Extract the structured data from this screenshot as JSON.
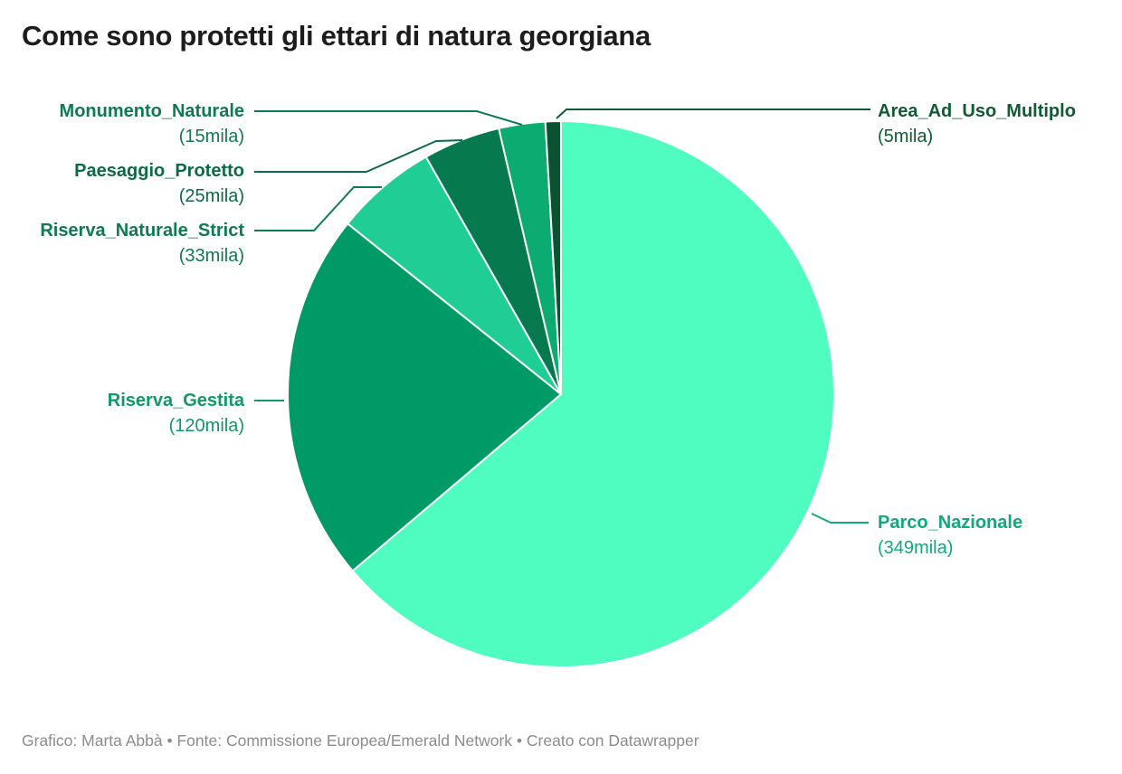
{
  "header": {
    "title": "Come sono protetti gli ettari di natura georgiana"
  },
  "chart_data": {
    "type": "pie",
    "title": "Come sono protetti gli ettari di natura georgiana",
    "unit": "mila",
    "direction": "clockwise",
    "start_angle_deg": 0,
    "legend_position": "callout-labels",
    "grid": false,
    "slices": [
      {
        "label": "Parco_Nazionale",
        "value": 349,
        "value_display": "(349mila)",
        "color": "#4ffdc1",
        "label_color": "#12a87c"
      },
      {
        "label": "Riserva_Gestita",
        "value": 120,
        "value_display": "(120mila)",
        "color": "#009a66",
        "label_color": "#0f9966"
      },
      {
        "label": "Riserva_Naturale_Strict",
        "value": 33,
        "value_display": "(33mila)",
        "color": "#1fcd95",
        "label_color": "#0e7a52"
      },
      {
        "label": "Paesaggio_Protetto",
        "value": 25,
        "value_display": "(25mila)",
        "color": "#067a4e",
        "label_color": "#0b6b45"
      },
      {
        "label": "Monumento_Naturale",
        "value": 15,
        "value_display": "(15mila)",
        "color": "#0cab72",
        "label_color": "#0e7a52"
      },
      {
        "label": "Area_Ad_Uso_Multiplo",
        "value": 5,
        "value_display": "(5mila)",
        "color": "#0b5230",
        "label_color": "#0f5c33"
      }
    ]
  },
  "footer": {
    "credit": "Grafico: Marta Abbà • Fonte: Commissione Europea/Emerald Network • Creato con Datawrapper"
  }
}
